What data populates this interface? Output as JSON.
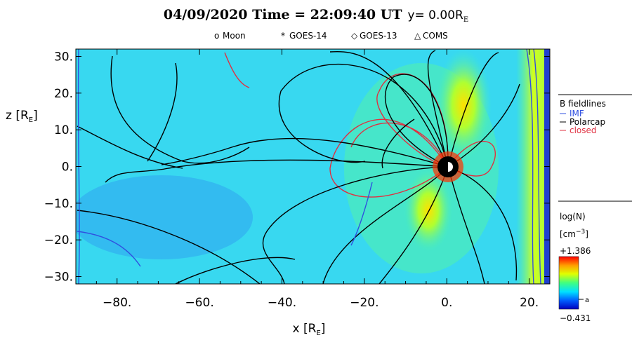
{
  "chart_data": {
    "type": "heatmap",
    "title": "04/09/2020 Time = 22:09:40 UT",
    "title_y": "y= 0.00R",
    "title_y_sub": "E",
    "markers_legend": [
      {
        "symbol": "o",
        "label": "Moon"
      },
      {
        "symbol": "*",
        "label": "GOES-14"
      },
      {
        "symbol": "◇",
        "label": "GOES-13"
      },
      {
        "symbol": "△",
        "label": "COMS"
      }
    ],
    "xlabel": "x [R",
    "xlabel_sub": "E",
    "xlabel_end": "]",
    "ylabel": "z [R",
    "ylabel_sub": "E",
    "ylabel_end": "]",
    "xlim": [
      -90,
      25
    ],
    "ylim": [
      -32,
      32
    ],
    "xticks": [
      -80,
      -60,
      -40,
      -20,
      0,
      20
    ],
    "xtick_labels": [
      "−80.",
      "−60.",
      "−40.",
      "−20.",
      "0.",
      "20."
    ],
    "yticks": [
      30,
      20,
      10,
      0,
      -10,
      -20,
      -30
    ],
    "ytick_labels": [
      "30.",
      "20.",
      "10.",
      "0.",
      "−10.",
      "−20.",
      "−30."
    ],
    "fieldlines_legend": {
      "title": "B fieldlines",
      "items": [
        {
          "label": "IMF",
          "color": "#3050e0"
        },
        {
          "label": "Polarcap",
          "color": "#000000"
        },
        {
          "label": "closed",
          "color": "#e03040"
        }
      ]
    },
    "colorbar": {
      "label": "log(N)",
      "unit": "[cm",
      "unit_sup": "−3",
      "unit_end": "]",
      "max_label": "+1.386",
      "min_label": "−0.431",
      "marker_label": "a",
      "max": 1.386,
      "min": -0.431,
      "colormap": [
        "#0000c0",
        "#0060ff",
        "#00e0ff",
        "#40ff80",
        "#e0ff00",
        "#ffa000",
        "#ff0000"
      ]
    },
    "background_color": "#38d8f0"
  }
}
